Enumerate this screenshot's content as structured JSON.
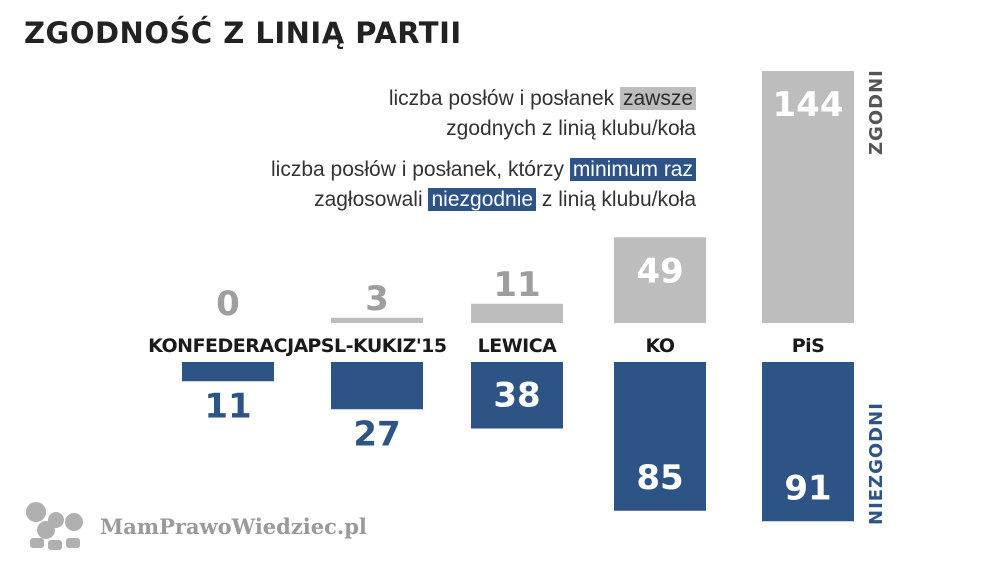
{
  "title": "ZGODNOŚĆ Z LINIĄ PARTII",
  "legend": {
    "zgodni_line1_pre": "liczba posłów i posłanek ",
    "zgodni_line1_hl": "zawsze",
    "zgodni_line2": "zgodnych z linią klubu/koła",
    "niezgodni_line1_pre": "liczba posłów i posłanek, którzy ",
    "niezgodni_line1_hl": "minimum raz",
    "niezgodni_line2_pre": "zagłosowali ",
    "niezgodni_line2_hl": "niezgodnie",
    "niezgodni_line2_post": " z linią klubu/koła"
  },
  "side_labels": {
    "top": "ZGODNI",
    "bottom": "NIEZGODNI"
  },
  "logo_text": "MamPrawoWiedziec.pl",
  "colors": {
    "zgodni": "#bdbdbd",
    "niezgodni": "#2e5385",
    "zgodni_text": "#9e9e9e"
  },
  "chart_data": {
    "type": "bar",
    "categories": [
      "KONFEDERACJA",
      "PSL-KUKIZ'15",
      "LEWICA",
      "KO",
      "PiS"
    ],
    "series": [
      {
        "name": "ZGODNI",
        "values": [
          0,
          3,
          11,
          49,
          144
        ]
      },
      {
        "name": "NIEZGODNI",
        "values": [
          11,
          27,
          38,
          85,
          91
        ]
      }
    ]
  }
}
